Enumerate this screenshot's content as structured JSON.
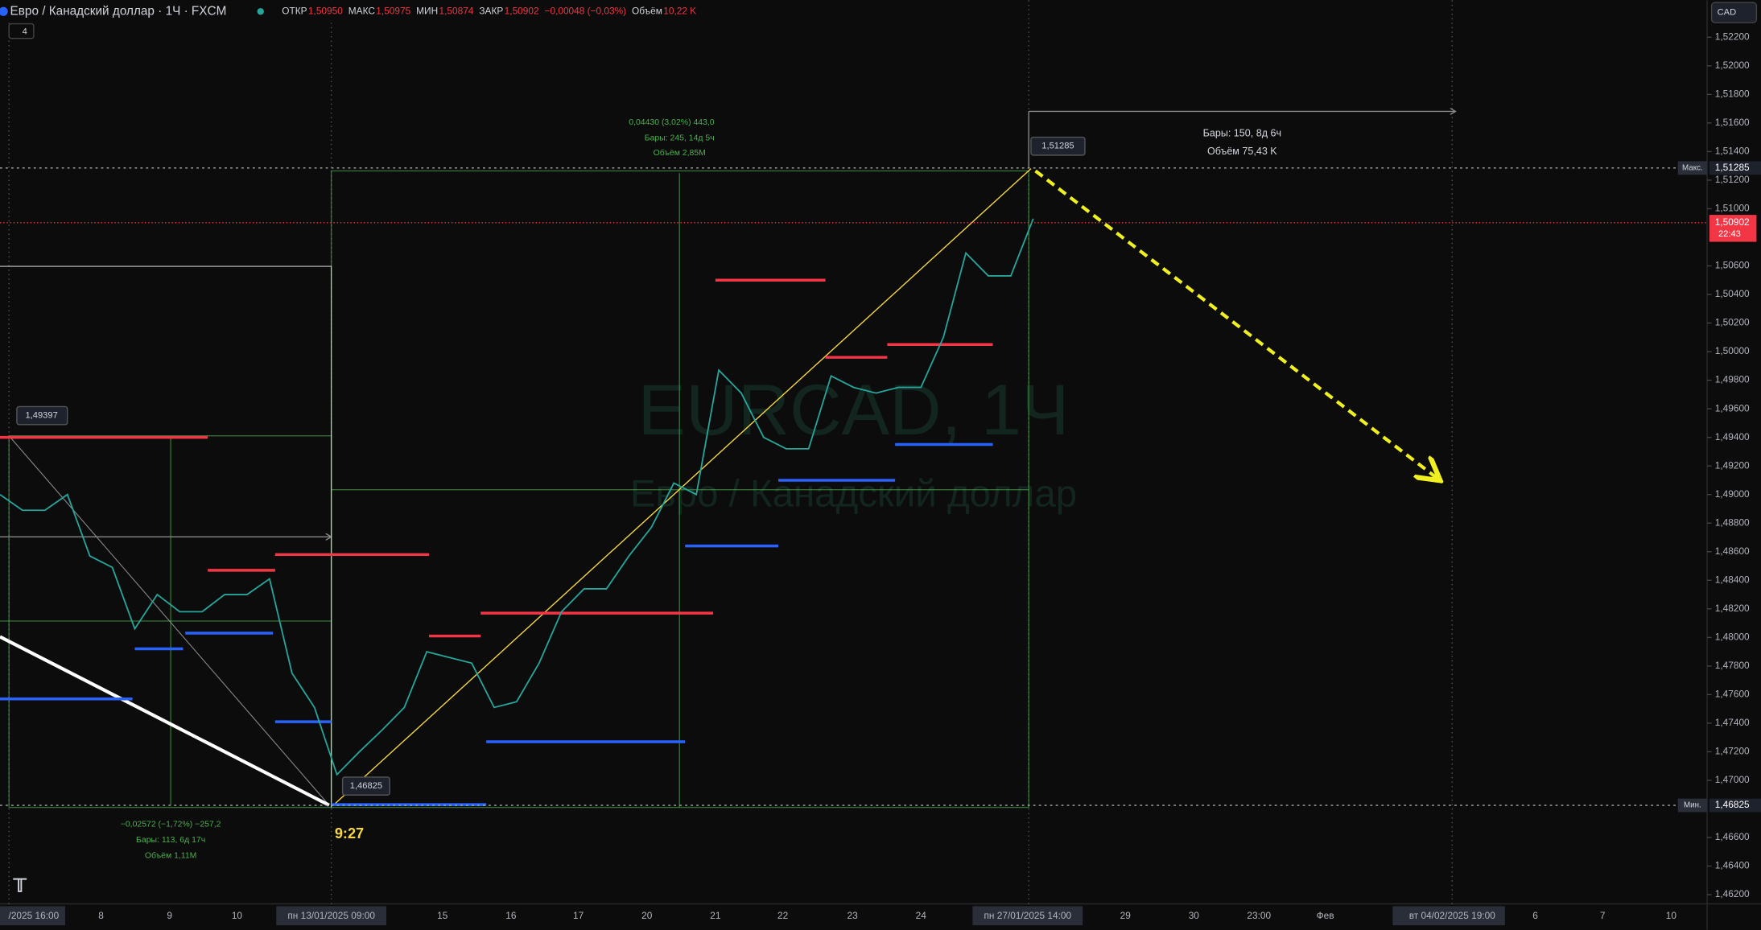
{
  "header": {
    "symbol": "Евро / Канадский доллар · 1Ч · FXCM",
    "indicators_count": "4",
    "open_label": "ОТКР",
    "open": "1,50950",
    "high_label": "МАКС",
    "high": "1,50975",
    "low_label": "МИН",
    "low": "1,50874",
    "close_label": "ЗАКР",
    "close": "1,50902",
    "change": "−0,00048 (−0,03%)",
    "volume_label": "Объём",
    "volume": "10,22 K"
  },
  "currency": "CAD",
  "watermark": {
    "symbol": "EURCAD, 1Ч",
    "name": "Евро / Канадский доллар"
  },
  "annotations": {
    "swing_high": "1,49397",
    "swing_low": "1,46825",
    "peak": "1,51285",
    "up_measure": [
      "0,04430 (3,02%) 443,0",
      "Бары: 245, 14д 5ч",
      "Объём 2,85M"
    ],
    "down_measure": [
      "−0,02572 (−1,72%) −257,2",
      "Бары: 113, 6д 17ч",
      "Объём 1,11M"
    ],
    "projection": [
      "Бары: 150, 8д 6ч",
      "Объём 75,43 K"
    ],
    "time_mark": "9:27"
  },
  "chart_data": {
    "type": "line",
    "color": "#26a69a",
    "ylim": [
      1.46135,
      1.52459
    ],
    "yticks": [
      {
        "value": 1.522,
        "label": "1,52200"
      },
      {
        "value": 1.52,
        "label": "1,52000"
      },
      {
        "value": 1.518,
        "label": "1,51800"
      },
      {
        "value": 1.516,
        "label": "1,51600"
      },
      {
        "value": 1.514,
        "label": "1,51400"
      },
      {
        "value": 1.512,
        "label": "1,51200"
      },
      {
        "value": 1.51,
        "label": "1,51000"
      },
      {
        "value": 1.506,
        "label": "1,50600"
      },
      {
        "value": 1.504,
        "label": "1,50400"
      },
      {
        "value": 1.502,
        "label": "1,50200"
      },
      {
        "value": 1.5,
        "label": "1,50000"
      },
      {
        "value": 1.498,
        "label": "1,49800"
      },
      {
        "value": 1.496,
        "label": "1,49600"
      },
      {
        "value": 1.494,
        "label": "1,49400"
      },
      {
        "value": 1.492,
        "label": "1,49200"
      },
      {
        "value": 1.49,
        "label": "1,49000"
      },
      {
        "value": 1.488,
        "label": "1,48800"
      },
      {
        "value": 1.486,
        "label": "1,48600"
      },
      {
        "value": 1.484,
        "label": "1,48400"
      },
      {
        "value": 1.482,
        "label": "1,48200"
      },
      {
        "value": 1.48,
        "label": "1,48000"
      },
      {
        "value": 1.478,
        "label": "1,47800"
      },
      {
        "value": 1.476,
        "label": "1,47600"
      },
      {
        "value": 1.474,
        "label": "1,47400"
      },
      {
        "value": 1.472,
        "label": "1,47200"
      },
      {
        "value": 1.47,
        "label": "1,47000"
      },
      {
        "value": 1.466,
        "label": "1,46600"
      },
      {
        "value": 1.464,
        "label": "1,46400"
      },
      {
        "value": 1.462,
        "label": "1,46200"
      }
    ],
    "x_labels": [
      "/2025  16:00",
      "8",
      "9",
      "10",
      "пн 13/01/2025  09:00",
      "15",
      "16",
      "17",
      "20",
      "21",
      "22",
      "23",
      "24",
      "пн 27/01/2025  14:00",
      "29",
      "30",
      "23:00",
      "Фев",
      "вт 04/02/2025  19:00",
      "6",
      "7",
      "10"
    ],
    "values": [
      1.49,
      1.4889,
      1.4889,
      1.49,
      1.4857,
      1.4849,
      1.4806,
      1.483,
      1.4818,
      1.4818,
      1.483,
      1.483,
      1.4841,
      1.4775,
      1.4751,
      1.4704,
      1.472,
      1.4735,
      1.4751,
      1.479,
      1.4786,
      1.4782,
      1.4751,
      1.4755,
      1.4782,
      1.4818,
      1.4834,
      1.4834,
      1.4857,
      1.4877,
      1.4908,
      1.49,
      1.4987,
      1.4971,
      1.494,
      1.4932,
      1.4932,
      1.4983,
      1.4975,
      1.4971,
      1.4975,
      1.4975,
      1.501,
      1.5069,
      1.5053,
      1.5053,
      1.5093
    ],
    "resistance": [
      1.494,
      1.4847,
      1.4858,
      1.4801,
      1.4817,
      1.505,
      1.4996,
      1.5005
    ],
    "support": [
      1.4757,
      1.4792,
      1.4803,
      1.4741,
      1.4683,
      1.4727,
      1.4864,
      1.491,
      1.4935
    ],
    "resistance_color": "#f23645",
    "support_color": "#2962ff",
    "price_tags": {
      "max_label": "Макс.",
      "max": {
        "value": 1.51285,
        "label": "1,51285"
      },
      "min_label": "Мин.",
      "min": {
        "value": 1.46825,
        "label": "1,46825"
      },
      "last": {
        "value": 1.50902,
        "label": "1,50902"
      },
      "countdown": "22:43"
    }
  }
}
